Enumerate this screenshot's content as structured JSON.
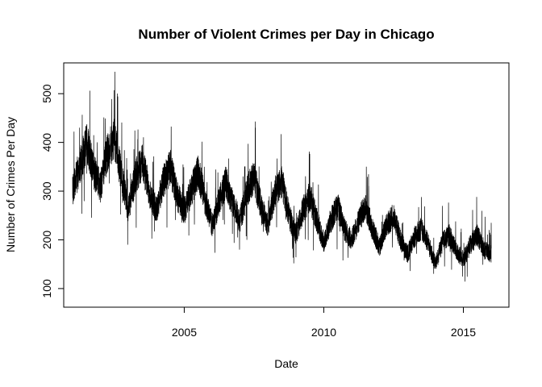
{
  "chart_data": {
    "type": "line",
    "title": "Number of Violent Crimes per Day in Chicago",
    "xlabel": "Date",
    "ylabel": "Number of Crimes Per Day",
    "x_ticks": [
      2005,
      2010,
      2015
    ],
    "y_ticks": [
      100,
      200,
      300,
      400,
      500
    ],
    "xlim": [
      "2001-01-01",
      "2016-02-01"
    ],
    "ylim": [
      80,
      545
    ],
    "grid": false,
    "legend": "none",
    "line_color": "#000000",
    "series": [
      {
        "x": [
          "2001-01",
          "2001-04",
          "2001-07",
          "2001-10",
          "2002-01",
          "2002-04",
          "2002-07",
          "2002-10",
          "2003-01",
          "2003-04",
          "2003-07",
          "2003-10",
          "2004-01",
          "2004-04",
          "2004-07",
          "2004-10",
          "2005-01",
          "2005-04",
          "2005-07",
          "2005-10",
          "2006-01",
          "2006-04",
          "2006-07",
          "2006-10",
          "2007-01",
          "2007-04",
          "2007-07",
          "2007-10",
          "2008-01",
          "2008-04",
          "2008-07",
          "2008-10",
          "2009-01",
          "2009-04",
          "2009-07",
          "2009-10",
          "2010-01",
          "2010-04",
          "2010-07",
          "2010-10",
          "2011-01",
          "2011-04",
          "2011-07",
          "2011-10",
          "2012-01",
          "2012-04",
          "2012-07",
          "2012-10",
          "2013-01",
          "2013-04",
          "2013-07",
          "2013-10",
          "2014-01",
          "2014-04",
          "2014-07",
          "2014-10",
          "2015-01",
          "2015-04",
          "2015-07",
          "2015-10",
          "2016-01"
        ],
        "values": [
          300,
          350,
          400,
          340,
          310,
          380,
          410,
          330,
          260,
          330,
          360,
          300,
          260,
          320,
          350,
          290,
          260,
          300,
          340,
          280,
          230,
          280,
          320,
          270,
          240,
          300,
          330,
          270,
          230,
          300,
          320,
          250,
          210,
          260,
          290,
          240,
          195,
          240,
          270,
          220,
          200,
          240,
          270,
          220,
          185,
          230,
          250,
          200,
          170,
          205,
          225,
          190,
          150,
          195,
          210,
          175,
          160,
          190,
          210,
          180,
          170
        ]
      }
    ]
  }
}
